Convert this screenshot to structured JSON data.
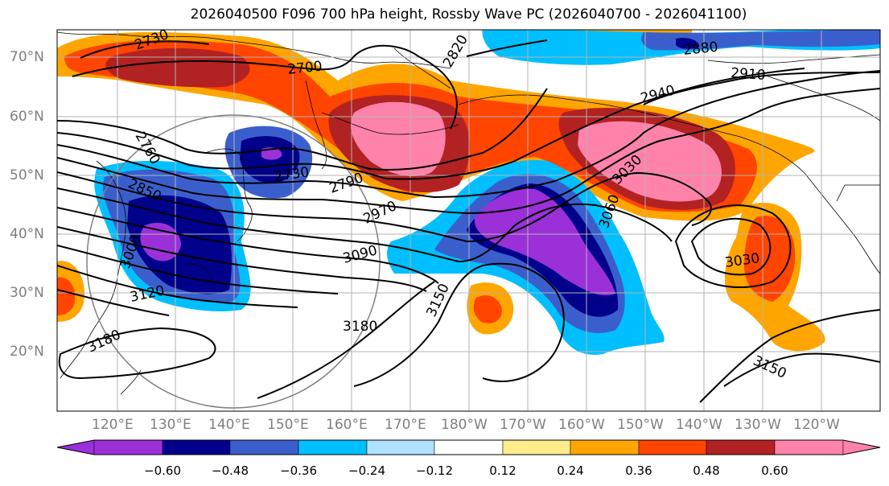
{
  "title": "2026040500 F096 700 hPa height, Rossby Wave PC (2026040700 - 2026041100)",
  "lat_labels": [
    "70°N",
    "60°N",
    "50°N",
    "40°N",
    "30°N",
    "20°N"
  ],
  "lon_labels": [
    "120°E",
    "130°E",
    "140°E",
    "150°E",
    "160°E",
    "170°E",
    "180°W",
    "170°W",
    "160°W",
    "150°W",
    "140°W",
    "130°W",
    "120°W"
  ],
  "colorbar": {
    "ticks": [
      "−0.60",
      "−0.48",
      "−0.36",
      "−0.24",
      "−0.12",
      "0.12",
      "0.24",
      "0.36",
      "0.48",
      "0.60"
    ],
    "colors": [
      "#9b30d9",
      "#00008b",
      "#3a5fcd",
      "#00bfff",
      "#b0e2ff",
      "#ffffff",
      "#ffec8b",
      "#ffa500",
      "#ff4500",
      "#b22222",
      "#ff82ab"
    ]
  },
  "contour_labels": [
    "2730",
    "2700",
    "2820",
    "2880",
    "2910",
    "2940",
    "2760",
    "2730",
    "2790",
    "2850",
    "2970",
    "3030",
    "3060",
    "3000",
    "3090",
    "3120",
    "3150",
    "3180",
    "3180",
    "3030",
    "3150"
  ],
  "colors": {
    "positive_strong": "#ff82ab",
    "negative_strong": "#9b30d9",
    "contour": "#000000",
    "grid": "#b3b3b3"
  }
}
